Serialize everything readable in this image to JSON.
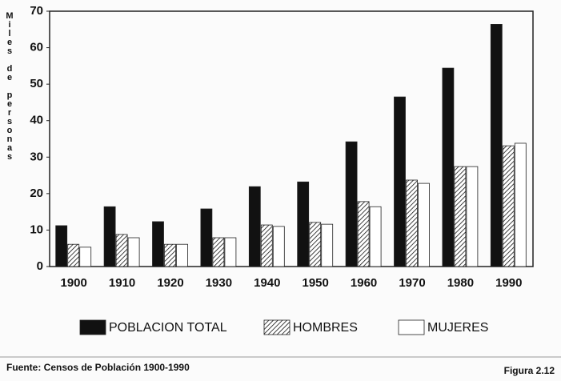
{
  "chart_data": {
    "type": "bar",
    "y_label": "Miles de personas",
    "categories": [
      "1900",
      "1910",
      "1920",
      "1930",
      "1940",
      "1950",
      "1960",
      "1970",
      "1980",
      "1990"
    ],
    "series": [
      {
        "name": "POBLACION TOTAL",
        "color": "#111111",
        "values": [
          11.2,
          16.4,
          12.3,
          15.8,
          21.9,
          23.2,
          34.2,
          46.5,
          54.4,
          66.4
        ]
      },
      {
        "name": "HOMBRES",
        "color": "#ffffff",
        "pattern": "hatch",
        "values": [
          6.1,
          8.8,
          6.1,
          7.9,
          11.4,
          12.1,
          17.8,
          23.7,
          27.4,
          33.1
        ]
      },
      {
        "name": "MUJERES",
        "color": "#ffffff",
        "values": [
          5.3,
          7.9,
          6.1,
          7.9,
          11.0,
          11.6,
          16.4,
          22.8,
          27.4,
          33.8
        ]
      }
    ],
    "ylim": [
      0,
      70
    ],
    "yticks": [
      0,
      10,
      20,
      30,
      40,
      50,
      60,
      70
    ],
    "source": "Fuente: Censos de Población 1900-1990",
    "figure_label": "Figura 2.12"
  }
}
